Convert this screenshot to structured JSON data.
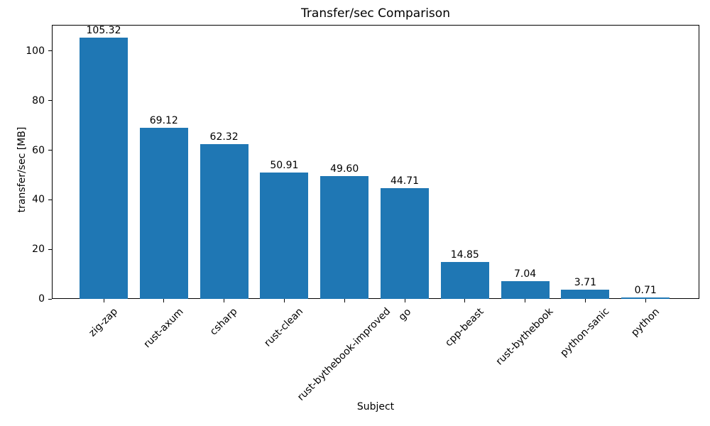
{
  "chart_data": {
    "type": "bar",
    "title": "Transfer/sec Comparison",
    "xlabel": "Subject",
    "ylabel": "transfer/sec [MB]",
    "categories": [
      "zig-zap",
      "rust-axum",
      "csharp",
      "rust-clean",
      "rust-bythebook-improved",
      "go",
      "cpp-beast",
      "rust-bythebook",
      "python-sanic",
      "python"
    ],
    "values": [
      105.32,
      69.12,
      62.32,
      50.91,
      49.6,
      44.71,
      14.85,
      7.04,
      3.71,
      0.71
    ],
    "value_labels": [
      "105.32",
      "69.12",
      "62.32",
      "50.91",
      "49.60",
      "44.71",
      "14.85",
      "7.04",
      "3.71",
      "0.71"
    ],
    "yticks": [
      0,
      20,
      40,
      60,
      80,
      100
    ],
    "ylim": [
      0,
      110.59
    ],
    "xtick_rotation_deg": 45,
    "grid": false,
    "legend": null,
    "bar_color": "#1f77b4",
    "text_color": "#000000",
    "spine_color": "#000000",
    "background_color": "#ffffff"
  }
}
